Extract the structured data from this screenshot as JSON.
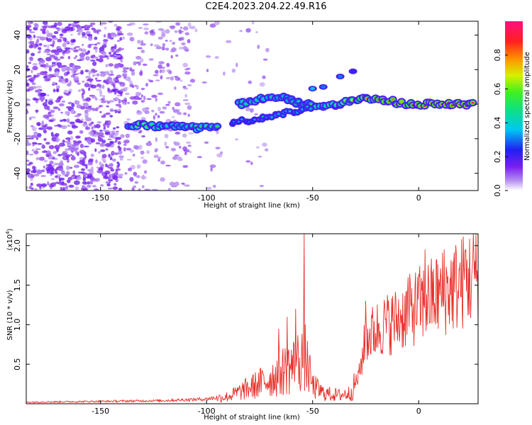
{
  "title": "C2E4.2023.204.22.49.R16",
  "chart_data": [
    {
      "type": "heatmap",
      "xlabel": "Height of straight line (km)",
      "ylabel": "Frequency (Hz)",
      "xlim": [
        -185,
        28
      ],
      "ylim": [
        -50,
        48
      ],
      "xticks": [
        -150,
        -100,
        -50,
        0
      ],
      "yticks": [
        -40,
        -20,
        0,
        20,
        40
      ],
      "colorbar": {
        "label": "Normalized spectral amplitude",
        "range": [
          0,
          1
        ],
        "ticks": [
          0.0,
          0.2,
          0.4,
          0.6,
          0.8
        ],
        "tick_labels": [
          "0.0",
          "0.2",
          "0.4",
          "0.6",
          "0.8"
        ]
      },
      "ridge": [
        {
          "x": -137,
          "y": -13,
          "amp": 0.45
        },
        {
          "x": -130,
          "y": -12,
          "amp": 0.6
        },
        {
          "x": -124,
          "y": -13,
          "amp": 0.5
        },
        {
          "x": -112,
          "y": -13,
          "amp": 0.45
        },
        {
          "x": -103,
          "y": -14,
          "amp": 0.5
        },
        {
          "x": -94,
          "y": -13,
          "amp": 0.45
        },
        {
          "x": -85,
          "y": 0,
          "amp": 0.45
        },
        {
          "x": -75,
          "y": 3,
          "amp": 0.5
        },
        {
          "x": -65,
          "y": 4,
          "amp": 0.45
        },
        {
          "x": -55,
          "y": 0,
          "amp": 0.4
        },
        {
          "x": -42,
          "y": -1,
          "amp": 0.55
        },
        {
          "x": -33,
          "y": 2,
          "amp": 0.65
        },
        {
          "x": -25,
          "y": 3,
          "amp": 0.75
        },
        {
          "x": -15,
          "y": 2,
          "amp": 0.8
        },
        {
          "x": -5,
          "y": 0,
          "amp": 0.8
        },
        {
          "x": 5,
          "y": 0,
          "amp": 0.85
        },
        {
          "x": 15,
          "y": 0,
          "amp": 0.85
        },
        {
          "x": 27,
          "y": 0,
          "amp": 0.85
        }
      ],
      "secondary_branch": [
        {
          "x": -88,
          "y": -11,
          "amp": 0.35
        },
        {
          "x": -78,
          "y": -9,
          "amp": 0.35
        },
        {
          "x": -68,
          "y": -7,
          "amp": 0.4
        },
        {
          "x": -58,
          "y": -4,
          "amp": 0.4
        },
        {
          "x": -50,
          "y": -2,
          "amp": 0.4
        }
      ],
      "upper_blobs": [
        {
          "x": -50,
          "y": 9,
          "amp": 0.35
        },
        {
          "x": -45,
          "y": 10,
          "amp": 0.3
        },
        {
          "x": -37,
          "y": 16,
          "amp": 0.3
        },
        {
          "x": -31,
          "y": 19,
          "amp": 0.2
        }
      ]
    },
    {
      "type": "line",
      "xlabel": "Height of straight line (km)",
      "ylabel": "SNR (10 * v/v)",
      "y_multiplier_label": "(x10",
      "y_multiplier_exp": "4",
      "y_multiplier_close": ")",
      "xlim": [
        -185,
        28
      ],
      "ylim": [
        0,
        2.15
      ],
      "xticks": [
        -150,
        -100,
        -50,
        0
      ],
      "yticks": [
        0.5,
        1.0,
        1.5,
        2.0
      ],
      "ytick_labels": [
        "0.5",
        "1.0",
        "1.5",
        "2.0"
      ],
      "color": "#e8302a",
      "envelope": [
        {
          "x": -185,
          "y": 0.02
        },
        {
          "x": -150,
          "y": 0.03
        },
        {
          "x": -120,
          "y": 0.04
        },
        {
          "x": -100,
          "y": 0.06
        },
        {
          "x": -90,
          "y": 0.1
        },
        {
          "x": -80,
          "y": 0.22
        },
        {
          "x": -70,
          "y": 0.35
        },
        {
          "x": -62,
          "y": 0.5
        },
        {
          "x": -58,
          "y": 0.55
        },
        {
          "x": -54,
          "y": 0.7
        },
        {
          "x": -50,
          "y": 0.25
        },
        {
          "x": -45,
          "y": 0.15
        },
        {
          "x": -38,
          "y": 0.12
        },
        {
          "x": -32,
          "y": 0.15
        },
        {
          "x": -28,
          "y": 0.4
        },
        {
          "x": -25,
          "y": 0.9
        },
        {
          "x": -18,
          "y": 1.05
        },
        {
          "x": -10,
          "y": 1.15
        },
        {
          "x": 0,
          "y": 1.35
        },
        {
          "x": 10,
          "y": 1.5
        },
        {
          "x": 20,
          "y": 1.65
        },
        {
          "x": 28,
          "y": 1.8
        }
      ],
      "peaks": [
        {
          "x": -54,
          "y": 2.15
        },
        {
          "x": -58,
          "y": 1.2
        },
        {
          "x": -62,
          "y": 1.1
        },
        {
          "x": -66,
          "y": 0.95
        },
        {
          "x": -25,
          "y": 1.3
        },
        {
          "x": -5,
          "y": 1.6
        },
        {
          "x": 3,
          "y": 1.95
        },
        {
          "x": 12,
          "y": 1.95
        },
        {
          "x": 22,
          "y": 1.95
        }
      ]
    }
  ]
}
